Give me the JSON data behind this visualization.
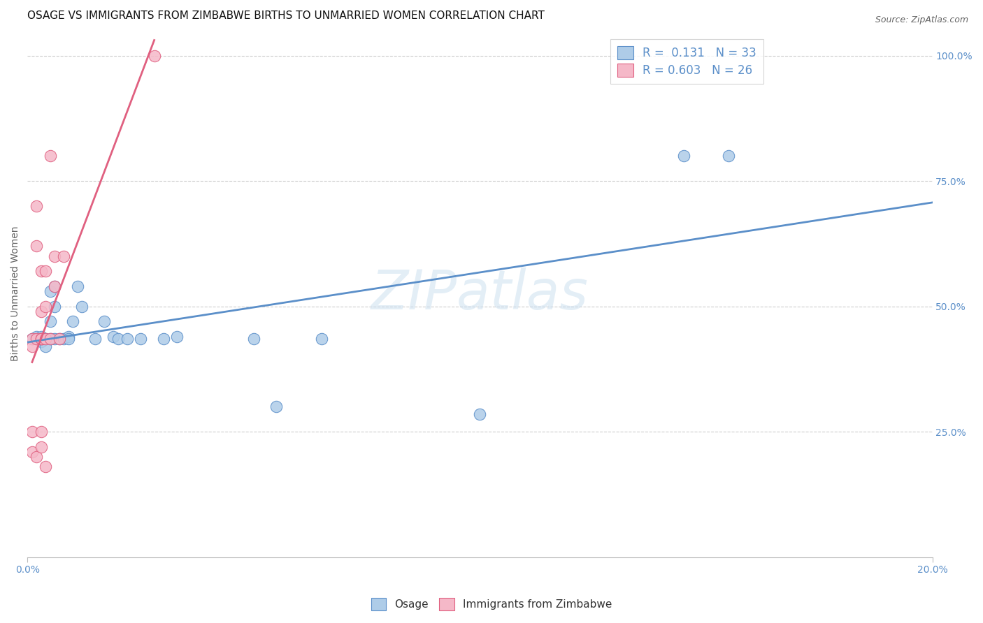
{
  "title": "OSAGE VS IMMIGRANTS FROM ZIMBABWE BIRTHS TO UNMARRIED WOMEN CORRELATION CHART",
  "source": "Source: ZipAtlas.com",
  "ylabel": "Births to Unmarried Women",
  "xlim": [
    0.0,
    0.2
  ],
  "ylim": [
    0.0,
    1.05
  ],
  "ytick_labels": [
    "25.0%",
    "50.0%",
    "75.0%",
    "100.0%"
  ],
  "ytick_vals": [
    0.25,
    0.5,
    0.75,
    1.0
  ],
  "xtick_labels": [
    "0.0%",
    "20.0%"
  ],
  "xtick_vals": [
    0.0,
    0.2
  ],
  "legend_r_blue": "0.131",
  "legend_n_blue": "33",
  "legend_r_pink": "0.603",
  "legend_n_pink": "26",
  "watermark": "ZIPatlas",
  "blue_color": "#aecce8",
  "pink_color": "#f5b8c8",
  "blue_line_color": "#5b8fc9",
  "pink_line_color": "#e06080",
  "osage_x": [
    0.001,
    0.002,
    0.003,
    0.003,
    0.004,
    0.004,
    0.005,
    0.005,
    0.005,
    0.006,
    0.006,
    0.006,
    0.007,
    0.008,
    0.009,
    0.009,
    0.01,
    0.011,
    0.012,
    0.015,
    0.017,
    0.019,
    0.02,
    0.022,
    0.025,
    0.03,
    0.033,
    0.05,
    0.055,
    0.065,
    0.1,
    0.145,
    0.155
  ],
  "osage_y": [
    0.435,
    0.44,
    0.43,
    0.44,
    0.435,
    0.42,
    0.53,
    0.47,
    0.435,
    0.54,
    0.5,
    0.435,
    0.435,
    0.435,
    0.44,
    0.435,
    0.47,
    0.54,
    0.5,
    0.435,
    0.47,
    0.44,
    0.435,
    0.435,
    0.435,
    0.435,
    0.44,
    0.435,
    0.3,
    0.435,
    0.285,
    0.8,
    0.8
  ],
  "zimbabwe_x": [
    0.001,
    0.001,
    0.001,
    0.001,
    0.002,
    0.002,
    0.002,
    0.002,
    0.003,
    0.003,
    0.003,
    0.003,
    0.003,
    0.003,
    0.003,
    0.004,
    0.004,
    0.004,
    0.004,
    0.005,
    0.005,
    0.006,
    0.006,
    0.007,
    0.008,
    0.028
  ],
  "zimbabwe_y": [
    0.435,
    0.42,
    0.25,
    0.21,
    0.7,
    0.62,
    0.435,
    0.2,
    0.435,
    0.435,
    0.435,
    0.57,
    0.49,
    0.25,
    0.22,
    0.57,
    0.5,
    0.435,
    0.18,
    0.8,
    0.435,
    0.6,
    0.54,
    0.435,
    0.6,
    1.0
  ],
  "title_fontsize": 11,
  "axis_label_fontsize": 10,
  "tick_fontsize": 10,
  "legend_fontsize": 12
}
